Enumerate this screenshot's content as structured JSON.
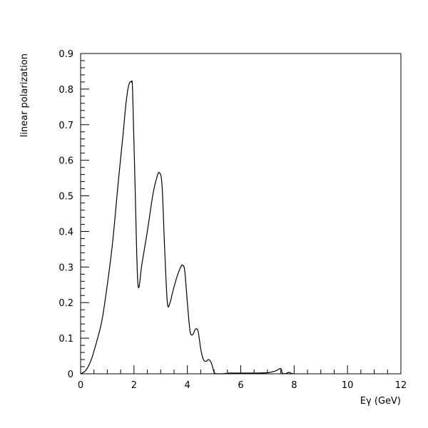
{
  "chart_data": {
    "type": "line",
    "title": "",
    "xlabel": "Eγ (GeV)",
    "ylabel": "linear polarization",
    "xlim": [
      0,
      12
    ],
    "ylim": [
      0,
      0.9
    ],
    "x_ticks": [
      0,
      2,
      4,
      6,
      8,
      10,
      12
    ],
    "x_tick_labels": [
      "0",
      "2",
      "4",
      "6",
      "8",
      "10",
      "12"
    ],
    "y_ticks": [
      0,
      0.1,
      0.2,
      0.3,
      0.4,
      0.5,
      0.6,
      0.7,
      0.8,
      0.9
    ],
    "y_tick_labels": [
      "0",
      "0.1",
      "0.2",
      "0.3",
      "0.4",
      "0.5",
      "0.6",
      "0.7",
      "0.8",
      "0.9"
    ],
    "grid": false,
    "legend": "none",
    "series": [
      {
        "color": "#000000",
        "x": [
          0.0,
          0.2,
          0.4,
          0.6,
          0.8,
          1.0,
          1.2,
          1.4,
          1.6,
          1.7,
          1.8,
          1.9,
          1.95,
          2.05,
          2.15,
          2.3,
          2.5,
          2.7,
          2.85,
          2.95,
          3.05,
          3.15,
          3.25,
          3.35,
          3.45,
          3.6,
          3.75,
          3.82,
          3.9,
          4.0,
          4.1,
          4.2,
          4.3,
          4.4,
          4.5,
          4.6,
          4.7,
          4.8,
          4.9,
          5.0,
          5.1,
          5.3,
          5.6,
          6.0,
          6.5,
          7.0,
          7.3,
          7.5,
          7.55,
          7.65,
          7.8,
          7.9,
          8.0
        ],
        "y": [
          0.0,
          0.01,
          0.04,
          0.09,
          0.15,
          0.25,
          0.37,
          0.53,
          0.68,
          0.76,
          0.81,
          0.82,
          0.79,
          0.5,
          0.25,
          0.31,
          0.4,
          0.5,
          0.55,
          0.565,
          0.53,
          0.35,
          0.2,
          0.2,
          0.23,
          0.27,
          0.3,
          0.305,
          0.29,
          0.2,
          0.12,
          0.11,
          0.125,
          0.12,
          0.07,
          0.04,
          0.035,
          0.04,
          0.03,
          0.005,
          0.0,
          0.0,
          0.002,
          0.002,
          0.002,
          0.003,
          0.008,
          0.015,
          0.003,
          0.0,
          0.004,
          0.001,
          0.0
        ]
      }
    ]
  }
}
